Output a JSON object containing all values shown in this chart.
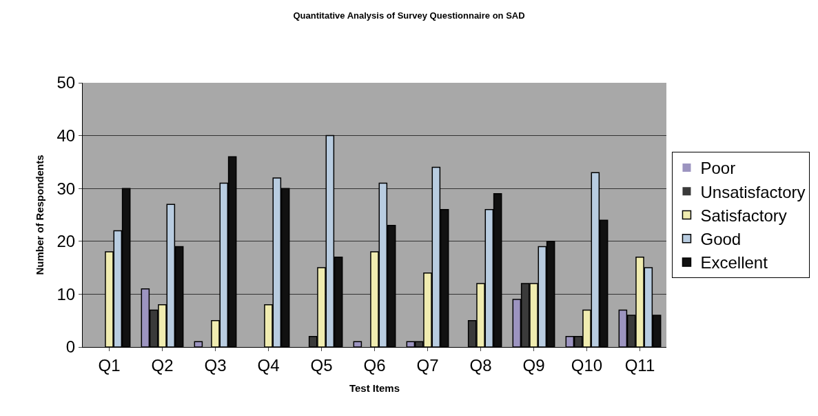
{
  "chart_data": {
    "type": "bar",
    "title": "Quantitative Analysis of Survey Questionnaire on SAD",
    "xlabel": "Test Items",
    "ylabel": "Number of Respondents",
    "categories": [
      "Q1",
      "Q2",
      "Q3",
      "Q4",
      "Q5",
      "Q6",
      "Q7",
      "Q8",
      "Q9",
      "Q10",
      "Q11"
    ],
    "series": [
      {
        "name": "Poor",
        "color": "#9c94c0",
        "values": [
          0,
          11,
          1,
          0,
          0,
          1,
          1,
          0,
          9,
          2,
          7
        ]
      },
      {
        "name": "Unsatisfactory",
        "color": "#3a3a3a",
        "values": [
          0,
          7,
          0,
          0,
          2,
          0,
          1,
          5,
          12,
          2,
          6
        ]
      },
      {
        "name": "Satisfactory",
        "color": "#f0ecb0",
        "values": [
          18,
          8,
          5,
          8,
          15,
          18,
          14,
          12,
          12,
          7,
          17
        ]
      },
      {
        "name": "Good",
        "color": "#b8cce0",
        "values": [
          22,
          27,
          31,
          32,
          40,
          31,
          34,
          26,
          19,
          33,
          15
        ]
      },
      {
        "name": "Excellent",
        "color": "#111111",
        "values": [
          30,
          19,
          36,
          30,
          17,
          23,
          26,
          29,
          20,
          24,
          6
        ]
      }
    ],
    "ylim": [
      0,
      50
    ],
    "yticks": [
      0,
      10,
      20,
      30,
      40,
      50
    ],
    "grid": "y",
    "legend": "right"
  }
}
